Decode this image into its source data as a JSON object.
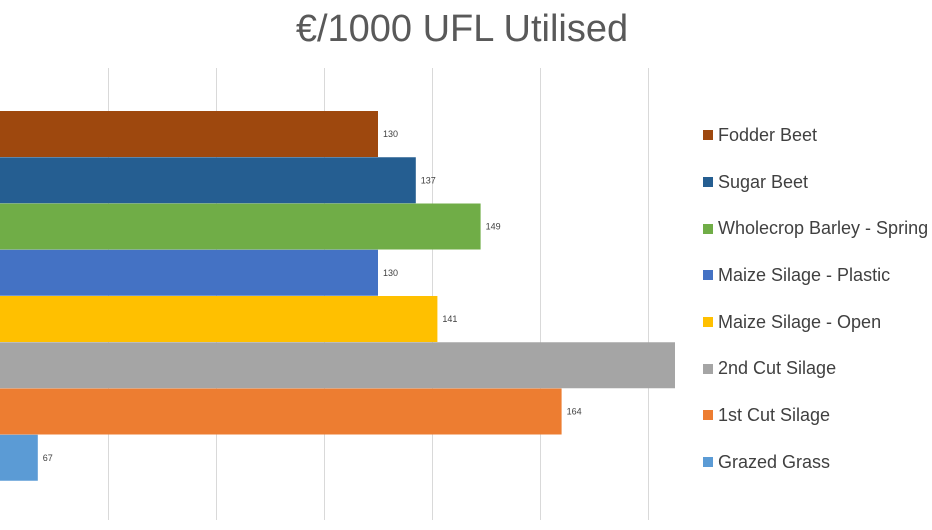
{
  "chart_data": {
    "type": "bar",
    "orientation": "horizontal",
    "title": "€/1000 UFL Utilised",
    "xlabel": "",
    "ylabel": "",
    "categories": [
      "Fodder Beet",
      "Sugar Beet",
      "Wholecrop Barley - Spring",
      "Maize Silage - Plastic",
      "Maize Silage - Open",
      "2nd Cut Silage",
      "1st Cut Silage",
      "Grazed Grass"
    ],
    "values": [
      130,
      137,
      149,
      130,
      141,
      185,
      164,
      67
    ],
    "data_labels": [
      "130",
      "137",
      "149",
      "130",
      "141",
      "",
      "164",
      "67"
    ],
    "colors": [
      "#9E480E",
      "#255E91",
      "#70AD47",
      "#4472C4",
      "#FFC000",
      "#A5A5A5",
      "#ED7D31",
      "#5B9BD5"
    ],
    "xlim": [
      60,
      220
    ],
    "gridline_step": 20,
    "grid": true,
    "legend_position": "right"
  }
}
